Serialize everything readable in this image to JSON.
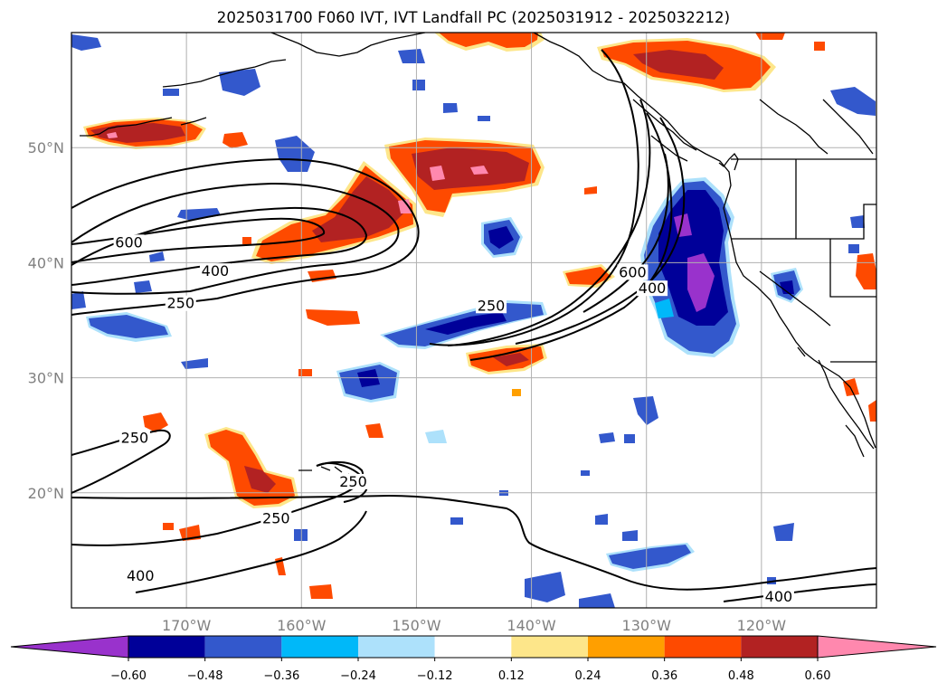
{
  "title": "2025031700 F060 IVT, IVT Landfall PC (2025031912 - 2025032212)",
  "map": {
    "projection": "equirectangular",
    "lon_range": [
      -180,
      -110
    ],
    "lat_range": [
      10,
      60
    ],
    "gridlines": true,
    "lon_ticks": [
      {
        "lon": -170,
        "label": "170°W"
      },
      {
        "lon": -160,
        "label": "160°W"
      },
      {
        "lon": -150,
        "label": "150°W"
      },
      {
        "lon": -140,
        "label": "140°W"
      },
      {
        "lon": -130,
        "label": "130°W"
      },
      {
        "lon": -120,
        "label": "120°W"
      }
    ],
    "lat_ticks": [
      {
        "lat": 20,
        "label": "20°N"
      },
      {
        "lat": 30,
        "label": "30°N"
      },
      {
        "lat": 40,
        "label": "40°N"
      },
      {
        "lat": 50,
        "label": "50°N"
      }
    ],
    "contour_labels": [
      {
        "text": "600",
        "lon": -175,
        "lat": 41.5
      },
      {
        "text": "400",
        "lon": -167.5,
        "lat": 39
      },
      {
        "text": "250",
        "lon": -170.5,
        "lat": 36.2
      },
      {
        "text": "250",
        "lon": -174.5,
        "lat": 24.5
      },
      {
        "text": "250",
        "lon": -155.5,
        "lat": 20.7
      },
      {
        "text": "250",
        "lon": -162.2,
        "lat": 17.5
      },
      {
        "text": "400",
        "lon": -174,
        "lat": 12.5
      },
      {
        "text": "250",
        "lon": -143.5,
        "lat": 36
      },
      {
        "text": "600",
        "lon": -131.2,
        "lat": 38.9
      },
      {
        "text": "400",
        "lon": -129.5,
        "lat": 37.5
      },
      {
        "text": "400",
        "lon": -118.5,
        "lat": 10.7
      }
    ],
    "anomaly_colors": {
      "pos_0.12": "#fde68a",
      "pos_0.24": "#ff9f00",
      "pos_0.36": "#fe4a00",
      "pos_0.48": "#b22222",
      "pos_0.60": "#ff88ae",
      "neg_0.12": "#ade1fb",
      "neg_0.24": "#00b8f9",
      "neg_0.36": "#3358cc",
      "neg_0.48": "#000099",
      "neg_0.60": "#9932cc"
    }
  },
  "colorbar": {
    "colors": [
      "#9932cc",
      "#000099",
      "#3358cc",
      "#00b8f9",
      "#ade1fb",
      "#ffffff",
      "#fde68a",
      "#ff9f00",
      "#fe4a00",
      "#b22222",
      "#ff88ae"
    ],
    "tick_labels": [
      "−0.60",
      "−0.48",
      "−0.36",
      "−0.24",
      "−0.12",
      "0.12",
      "0.24",
      "0.36",
      "0.48",
      "0.60"
    ],
    "extend": "both"
  }
}
